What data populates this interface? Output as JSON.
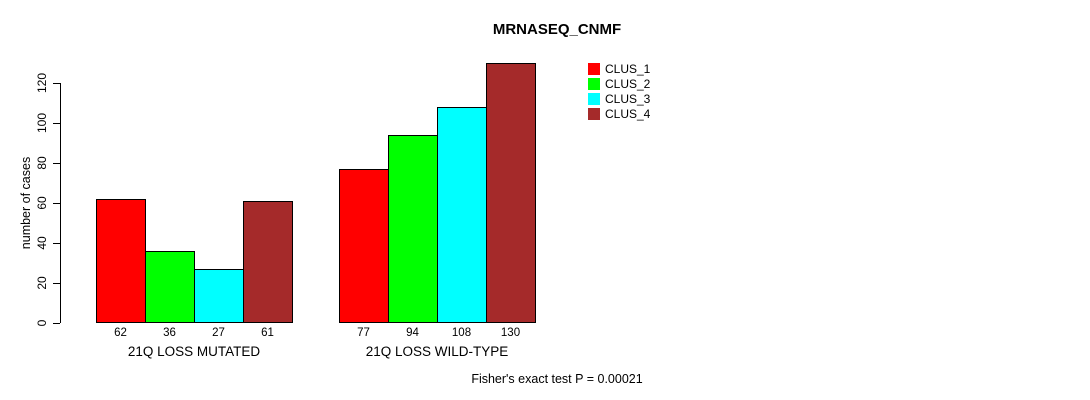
{
  "title": "MRNASEQ_CNMF",
  "footer": "Fisher's exact test P = 0.00021",
  "chart_data": {
    "type": "bar",
    "title": "MRNASEQ_CNMF",
    "xlabel": "",
    "ylabel": "number of cases",
    "categories": [
      "21Q LOSS MUTATED",
      "21Q LOSS WILD-TYPE"
    ],
    "series": [
      {
        "name": "CLUS_1",
        "color": "#ff0000",
        "values": [
          62,
          77
        ]
      },
      {
        "name": "CLUS_2",
        "color": "#00ff00",
        "values": [
          36,
          94
        ]
      },
      {
        "name": "CLUS_3",
        "color": "#00ffff",
        "values": [
          27,
          108
        ]
      },
      {
        "name": "CLUS_4",
        "color": "#a52a2a",
        "values": [
          61,
          130
        ]
      }
    ],
    "yticks": [
      0,
      20,
      40,
      60,
      80,
      100,
      120
    ],
    "ylim": [
      0,
      130
    ],
    "grid": false,
    "legend_position": "top-right",
    "show_bar_value_labels": true,
    "annotation": "Fisher's exact test P = 0.00021"
  }
}
